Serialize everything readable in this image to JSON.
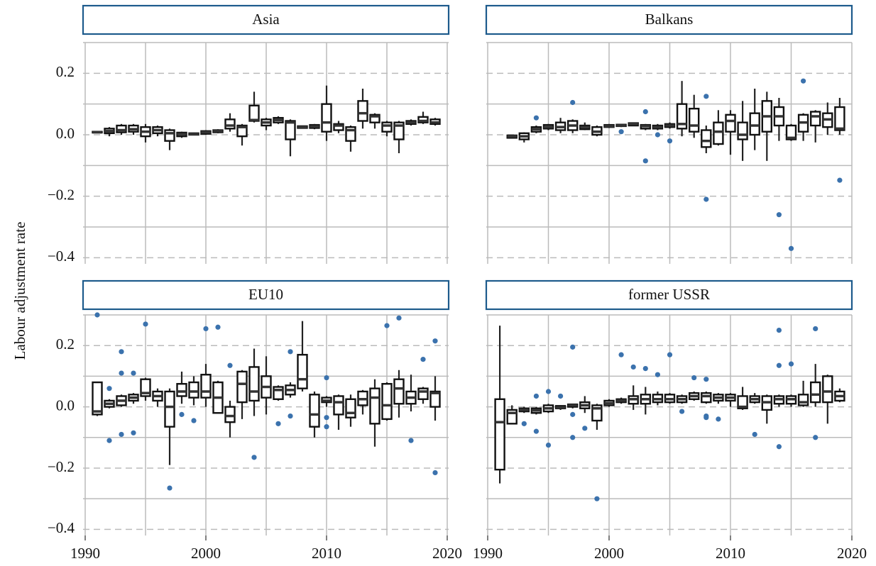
{
  "chart_data": [
    {
      "type": "box",
      "title": "Asia",
      "ylabel": "Labour adjustment rate",
      "xtick_labels": false,
      "ytick_labels": true,
      "x": [
        1991,
        1992,
        1993,
        1994,
        1995,
        1996,
        1997,
        1998,
        1999,
        2000,
        2001,
        2002,
        2003,
        2004,
        2005,
        2006,
        2007,
        2008,
        2009,
        2010,
        2011,
        2012,
        2013,
        2014,
        2015,
        2016,
        2017,
        2018,
        2019
      ],
      "low": [
        0.005,
        -0.005,
        0,
        0,
        -0.025,
        -0.005,
        -0.05,
        -0.01,
        -0.002,
        0,
        0.005,
        0.01,
        -0.035,
        0.04,
        0.015,
        0.035,
        -0.07,
        0.02,
        0.018,
        -0.02,
        0.005,
        -0.055,
        0.02,
        0.02,
        -0.005,
        -0.06,
        0.03,
        0.035,
        0.03
      ],
      "q1": [
        0.007,
        0.005,
        0.008,
        0.01,
        -0.005,
        0.005,
        -0.02,
        -0.005,
        0,
        0.003,
        0.008,
        0.02,
        -0.005,
        0.045,
        0.03,
        0.04,
        -0.015,
        0.022,
        0.022,
        0.01,
        0.015,
        -0.02,
        0.045,
        0.04,
        0.01,
        -0.015,
        0.035,
        0.04,
        0.035
      ],
      "median": [
        0.008,
        0.012,
        0.015,
        0.018,
        0.01,
        0.015,
        0.005,
        0.002,
        0.002,
        0.008,
        0.012,
        0.03,
        0.025,
        0.048,
        0.04,
        0.048,
        0.04,
        0.025,
        0.027,
        0.04,
        0.03,
        0.015,
        0.07,
        0.06,
        0.03,
        0.03,
        0.04,
        0.045,
        0.04
      ],
      "q3": [
        0.01,
        0.02,
        0.03,
        0.03,
        0.025,
        0.025,
        0.015,
        0.007,
        0.005,
        0.012,
        0.015,
        0.05,
        0.03,
        0.095,
        0.05,
        0.055,
        0.045,
        0.028,
        0.032,
        0.1,
        0.035,
        0.025,
        0.11,
        0.065,
        0.04,
        0.04,
        0.045,
        0.058,
        0.05
      ],
      "high": [
        0.012,
        0.025,
        0.035,
        0.035,
        0.035,
        0.03,
        0.02,
        0.01,
        0.007,
        0.015,
        0.018,
        0.07,
        0.035,
        0.14,
        0.055,
        0.06,
        0.05,
        0.03,
        0.035,
        0.16,
        0.045,
        0.03,
        0.15,
        0.07,
        0.045,
        0.045,
        0.05,
        0.075,
        0.055
      ],
      "outliers": {
        "x": [],
        "y": []
      },
      "outlier_color": "#3b72ad",
      "xlim": [
        1990,
        2020
      ],
      "xticks": [
        1990,
        2000,
        2010,
        2020
      ],
      "xminor": [
        1995,
        2005,
        2015
      ],
      "ylim": [
        -0.42,
        0.3
      ],
      "yticks": [
        {
          "value": -0.4,
          "label": "−0.4"
        },
        {
          "value": -0.2,
          "label": "−0.2"
        },
        {
          "value": 0,
          "label": "0.0"
        },
        0.2
      ],
      "yminor": [
        -0.3,
        -0.1,
        0.1,
        0.3
      ],
      "grid": true
    },
    {
      "type": "box",
      "title": "Balkans",
      "xtick_labels": false,
      "ytick_labels": false,
      "x": [
        1992,
        1993,
        1994,
        1995,
        1996,
        1997,
        1998,
        1999,
        2000,
        2001,
        2002,
        2003,
        2004,
        2005,
        2006,
        2007,
        2008,
        2009,
        2010,
        2011,
        2012,
        2013,
        2014,
        2015,
        2016,
        2017,
        2018,
        2019
      ],
      "low": [
        -0.012,
        -0.025,
        0.005,
        0.015,
        0.005,
        0.005,
        0.015,
        -0.005,
        0.022,
        0.025,
        0.028,
        0.015,
        0.015,
        0.02,
        -0.005,
        -0.01,
        -0.06,
        -0.035,
        -0.065,
        -0.085,
        -0.05,
        -0.085,
        -0.02,
        -0.02,
        -0.02,
        -0.025,
        0,
        0
      ],
      "q1": [
        -0.01,
        -0.015,
        0.01,
        0.02,
        0.015,
        0.015,
        0.018,
        0,
        0.025,
        0.028,
        0.03,
        0.02,
        0.02,
        0.025,
        0.02,
        0.01,
        -0.04,
        -0.03,
        0.01,
        -0.015,
        0,
        0.01,
        0.03,
        -0.015,
        0.01,
        0.03,
        0.025,
        0.015
      ],
      "median": [
        -0.005,
        -0.005,
        0.018,
        0.025,
        0.025,
        0.03,
        0.025,
        0.01,
        0.028,
        0.03,
        0.035,
        0.028,
        0.025,
        0.03,
        0.035,
        0.03,
        -0.02,
        0.01,
        0.045,
        0,
        0.03,
        0.06,
        0.06,
        -0.01,
        0.04,
        0.06,
        0.05,
        0.02
      ],
      "q3": [
        -0.002,
        0.005,
        0.025,
        0.032,
        0.04,
        0.045,
        0.03,
        0.025,
        0.032,
        0.033,
        0.038,
        0.032,
        0.03,
        0.035,
        0.1,
        0.085,
        0.015,
        0.04,
        0.065,
        0.04,
        0.07,
        0.11,
        0.09,
        0.03,
        0.065,
        0.075,
        0.07,
        0.09
      ],
      "high": [
        0,
        0.008,
        0.03,
        0.035,
        0.055,
        0.05,
        0.04,
        0.03,
        0.035,
        0.035,
        0.04,
        0.035,
        0.035,
        0.04,
        0.175,
        0.13,
        0.03,
        0.08,
        0.08,
        0.11,
        0.15,
        0.14,
        0.12,
        0.035,
        0.07,
        0.08,
        0.105,
        0.12
      ],
      "outliers": {
        "x": [
          1994,
          1997,
          2001,
          2003,
          2003,
          2004,
          2005,
          2008,
          2008,
          2014,
          2015,
          2016,
          2019
        ],
        "y": [
          0.055,
          0.105,
          0.01,
          0.075,
          -0.085,
          0,
          -0.02,
          0.125,
          -0.21,
          -0.26,
          -0.37,
          0.175,
          -0.148
        ]
      },
      "outlier_color": "#3b72ad",
      "xlim": [
        1990,
        2020
      ],
      "xticks": [
        1990,
        2000,
        2010,
        2020
      ],
      "xminor": [
        1995,
        2005,
        2015
      ],
      "ylim": [
        -0.42,
        0.3
      ],
      "yticks": [
        {
          "value": -0.4,
          "label": "−0.4"
        },
        {
          "value": -0.2,
          "label": "−0.2"
        },
        {
          "value": 0,
          "label": "0.0"
        },
        0.2
      ],
      "yminor": [
        -0.3,
        -0.1,
        0.1,
        0.3
      ],
      "grid": true
    },
    {
      "type": "box",
      "title": "EU10",
      "xtick_labels": true,
      "ytick_labels": true,
      "x": [
        1991,
        1992,
        1993,
        1994,
        1995,
        1996,
        1997,
        1998,
        1999,
        2000,
        2001,
        2002,
        2003,
        2004,
        2005,
        2006,
        2007,
        2008,
        2009,
        2010,
        2011,
        2012,
        2013,
        2014,
        2015,
        2016,
        2017,
        2018,
        2019
      ],
      "low": [
        -0.03,
        -0.005,
        0,
        0.01,
        0.02,
        0,
        -0.19,
        0.01,
        0.005,
        0,
        -0.02,
        -0.1,
        -0.04,
        -0.03,
        -0.025,
        0.02,
        0.03,
        0.05,
        -0.1,
        0,
        -0.075,
        -0.065,
        -0.025,
        -0.13,
        -0.045,
        -0.035,
        -0.015,
        0.01,
        -0.045
      ],
      "q1": [
        -0.025,
        0,
        0.005,
        0.02,
        0.035,
        0.02,
        -0.065,
        0.035,
        0.03,
        0.03,
        -0.02,
        -0.05,
        0.015,
        0.02,
        0.03,
        0.025,
        0.04,
        0.06,
        -0.065,
        0.015,
        -0.025,
        -0.035,
        0.005,
        -0.055,
        -0.04,
        0.01,
        0.01,
        0.025,
        0
      ],
      "median": [
        -0.015,
        0.01,
        0.02,
        0.03,
        0.045,
        0.035,
        0,
        0.05,
        0.05,
        0.05,
        0.03,
        -0.03,
        0.075,
        0.05,
        0.065,
        0.055,
        0.055,
        0.09,
        -0.025,
        0.02,
        0.015,
        -0.02,
        0.025,
        0.03,
        0.005,
        0.06,
        0.03,
        0.05,
        0.045
      ],
      "q3": [
        0.08,
        0.02,
        0.035,
        0.04,
        0.09,
        0.05,
        0.05,
        0.075,
        0.08,
        0.105,
        0.08,
        0,
        0.115,
        0.13,
        0.1,
        0.065,
        0.07,
        0.17,
        0.04,
        0.03,
        0.035,
        0.025,
        0.05,
        0.06,
        0.075,
        0.09,
        0.05,
        0.06,
        0.05
      ],
      "high": [
        0.08,
        0.025,
        0.04,
        0.045,
        0.095,
        0.06,
        0.06,
        0.115,
        0.1,
        0.14,
        0.085,
        0.02,
        0.12,
        0.19,
        0.165,
        0.07,
        0.08,
        0.28,
        0.05,
        0.035,
        0.04,
        0.04,
        0.055,
        0.09,
        0.08,
        0.12,
        0.105,
        0.065,
        0.1
      ],
      "outliers": {
        "x": [
          1991,
          1992,
          1992,
          1993,
          1993,
          1993,
          1994,
          1994,
          1995,
          1997,
          1998,
          1999,
          2000,
          2001,
          2002,
          2004,
          2006,
          2007,
          2007,
          2010,
          2010,
          2010,
          2015,
          2016,
          2017,
          2018,
          2019,
          2019
        ],
        "y": [
          0.3,
          0.06,
          -0.11,
          0.18,
          0.11,
          -0.09,
          0.11,
          -0.085,
          0.27,
          -0.265,
          -0.025,
          -0.045,
          0.255,
          0.26,
          0.135,
          -0.165,
          -0.055,
          0.18,
          -0.03,
          0.095,
          -0.035,
          -0.065,
          0.265,
          0.29,
          -0.11,
          0.155,
          0.215,
          -0.215
        ]
      },
      "outlier_color": "#3b72ad",
      "xlim": [
        1990,
        2020
      ],
      "xticks": [
        1990,
        2000,
        2010,
        2020
      ],
      "xminor": [
        1995,
        2005,
        2015
      ],
      "ylim": [
        -0.42,
        0.3
      ],
      "yticks": [
        {
          "value": -0.4,
          "label": "−0.4"
        },
        {
          "value": -0.2,
          "label": "−0.2"
        },
        {
          "value": 0,
          "label": "0.0"
        },
        0.2
      ],
      "yminor": [
        -0.3,
        -0.1,
        0.1,
        0.3
      ],
      "grid": true
    },
    {
      "type": "box",
      "title": "former USSR",
      "xtick_labels": true,
      "ytick_labels": false,
      "x": [
        1991,
        1992,
        1993,
        1994,
        1995,
        1996,
        1997,
        1998,
        1999,
        2000,
        2001,
        2002,
        2003,
        2004,
        2005,
        2006,
        2007,
        2008,
        2009,
        2010,
        2011,
        2012,
        2013,
        2014,
        2015,
        2016,
        2017,
        2018,
        2019
      ],
      "low": [
        -0.25,
        -0.055,
        -0.02,
        -0.025,
        -0.02,
        -0.01,
        -0.005,
        -0.02,
        -0.075,
        0,
        0.01,
        -0.01,
        -0.025,
        0.005,
        0.01,
        0.01,
        0.02,
        0.01,
        0.01,
        0,
        -0.01,
        0.01,
        -0.055,
        0,
        0,
        0,
        0,
        -0.055,
        0.015
      ],
      "q1": [
        -0.205,
        -0.055,
        -0.015,
        -0.02,
        -0.015,
        -0.005,
        0,
        -0.005,
        -0.045,
        0.005,
        0.015,
        0.01,
        0.01,
        0.015,
        0.015,
        0.015,
        0.025,
        0.015,
        0.02,
        0.02,
        -0.005,
        0.015,
        -0.01,
        0.01,
        0.01,
        0.005,
        0.015,
        0.015,
        0.02
      ],
      "median": [
        -0.05,
        -0.02,
        -0.01,
        -0.012,
        -0.005,
        -0.002,
        0.005,
        0.005,
        -0.005,
        0.012,
        0.02,
        0.025,
        0.025,
        0.025,
        0.025,
        0.025,
        0.035,
        0.035,
        0.03,
        0.03,
        0,
        0.025,
        0.015,
        0.025,
        0.025,
        0.015,
        0.04,
        0.05,
        0.035
      ],
      "q3": [
        0.025,
        -0.01,
        -0.005,
        -0.005,
        0.005,
        0.003,
        0.008,
        0.015,
        0.005,
        0.02,
        0.025,
        0.035,
        0.04,
        0.04,
        0.04,
        0.035,
        0.045,
        0.045,
        0.04,
        0.04,
        0.035,
        0.035,
        0.035,
        0.035,
        0.035,
        0.04,
        0.08,
        0.1,
        0.05
      ],
      "high": [
        0.265,
        0.005,
        0,
        0,
        0.01,
        0.005,
        0.01,
        0.035,
        0.01,
        0.025,
        0.03,
        0.07,
        0.065,
        0.05,
        0.045,
        0.04,
        0.05,
        0.05,
        0.045,
        0.045,
        0.065,
        0.045,
        0.04,
        0.04,
        0.04,
        0.085,
        0.14,
        0.105,
        0.06
      ],
      "outliers": {
        "x": [
          1993,
          1994,
          1994,
          1995,
          1995,
          1996,
          1997,
          1997,
          1997,
          1998,
          1999,
          2001,
          2002,
          2003,
          2004,
          2005,
          2006,
          2007,
          2008,
          2008,
          2008,
          2009,
          2012,
          2014,
          2014,
          2014,
          2015,
          2017,
          2017
        ],
        "y": [
          -0.055,
          0.035,
          -0.08,
          0.05,
          -0.125,
          0.035,
          0.195,
          -0.025,
          -0.1,
          -0.07,
          -0.3,
          0.17,
          0.13,
          0.125,
          0.105,
          0.17,
          -0.015,
          0.095,
          0.09,
          -0.03,
          -0.035,
          -0.04,
          -0.09,
          0.25,
          0.135,
          -0.13,
          0.14,
          0.255,
          -0.1
        ]
      },
      "outlier_color": "#3b72ad",
      "xlim": [
        1990,
        2020
      ],
      "xticks": [
        1990,
        2000,
        2010,
        2020
      ],
      "xminor": [
        1995,
        2005,
        2015
      ],
      "ylim": [
        -0.42,
        0.3
      ],
      "yticks": [
        {
          "value": -0.4,
          "label": "−0.4"
        },
        {
          "value": -0.2,
          "label": "−0.2"
        },
        {
          "value": 0,
          "label": "0.0"
        },
        0.2
      ],
      "yminor": [
        -0.3,
        -0.1,
        0.1,
        0.3
      ],
      "grid": true
    }
  ]
}
